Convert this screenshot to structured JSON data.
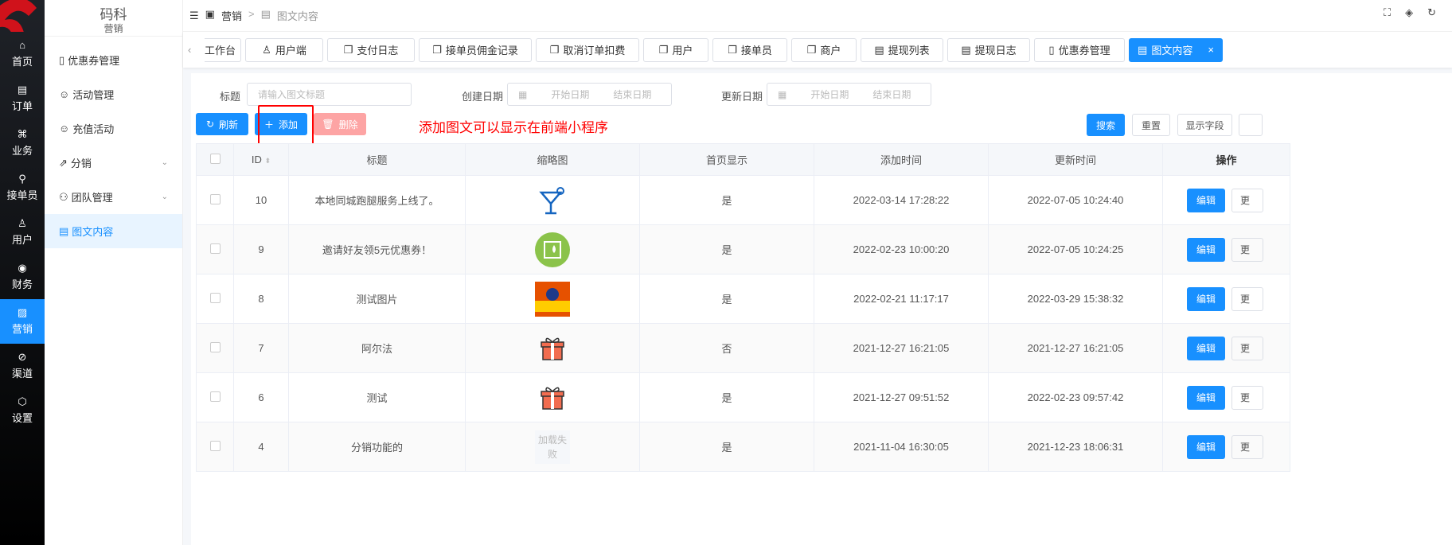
{
  "sidebar": {
    "items": [
      {
        "icon": "home-icon",
        "label": "首页"
      },
      {
        "icon": "order-icon",
        "label": "订单"
      },
      {
        "icon": "business-icon",
        "label": "业务"
      },
      {
        "icon": "bike-icon",
        "label": "接单员"
      },
      {
        "icon": "user-icon",
        "label": "用户"
      },
      {
        "icon": "finance-icon",
        "label": "财务"
      },
      {
        "icon": "marketing-icon",
        "label": "营销",
        "active": true
      },
      {
        "icon": "channel-icon",
        "label": "渠道"
      },
      {
        "icon": "settings-icon",
        "label": "设置"
      }
    ]
  },
  "submenu": {
    "brand": "码科",
    "section": "营销",
    "items": [
      {
        "label": "优惠券管理",
        "icon": "ticket-icon"
      },
      {
        "label": "活动管理",
        "icon": "smile-icon"
      },
      {
        "label": "充值活动",
        "icon": "smile-icon"
      },
      {
        "label": "分销",
        "icon": "share-icon",
        "expandable": true
      },
      {
        "label": "团队管理",
        "icon": "team-icon",
        "expandable": true
      },
      {
        "label": "图文内容",
        "icon": "document-icon",
        "active": true
      }
    ]
  },
  "header": {
    "breadcrumb": [
      "营销",
      "图文内容"
    ]
  },
  "tabs": [
    {
      "label": "工作台"
    },
    {
      "label": "用户端"
    },
    {
      "label": "支付日志"
    },
    {
      "label": "接单员佣金记录"
    },
    {
      "label": "取消订单扣费"
    },
    {
      "label": "用户"
    },
    {
      "label": "接单员"
    },
    {
      "label": "商户"
    },
    {
      "label": "提现列表"
    },
    {
      "label": "提现日志"
    },
    {
      "label": "优惠券管理"
    },
    {
      "label": "图文内容",
      "active": true
    }
  ],
  "filters": {
    "title_label": "标题",
    "title_placeholder": "请输入图文标题",
    "created_label": "创建日期",
    "updated_label": "更新日期",
    "start_placeholder": "开始日期",
    "end_placeholder": "结束日期"
  },
  "toolbar": {
    "refresh": "刷新",
    "add": "添加",
    "delete": "删除",
    "search": "搜索",
    "reset": "重置",
    "columns": "显示字段"
  },
  "annotation": "添加图文可以显示在前端小程序",
  "colors": {
    "primary": "#1890ff",
    "annotation": "#ff0000",
    "danger_disabled": "#fda4a4"
  },
  "table": {
    "headers": [
      "ID",
      "标题",
      "缩略图",
      "首页显示",
      "添加时间",
      "更新时间",
      "操作"
    ],
    "rows": [
      {
        "id": "10",
        "title": "本地同城跑腿服务上线了。",
        "thumb": "cocktail",
        "home": "是",
        "created": "2022-03-14 17:28:22",
        "updated": "2022-07-05 10:24:40"
      },
      {
        "id": "9",
        "title": "邀请好友领5元优惠券！",
        "thumb": "green-circle",
        "home": "是",
        "created": "2022-02-23 10:00:20",
        "updated": "2022-07-05 10:24:25"
      },
      {
        "id": "8",
        "title": "测试图片",
        "thumb": "game-banner",
        "home": "是",
        "created": "2022-02-21 11:17:17",
        "updated": "2022-03-29 15:38:32"
      },
      {
        "id": "7",
        "title": "阿尔法",
        "thumb": "gift",
        "home": "否",
        "created": "2021-12-27 16:21:05",
        "updated": "2021-12-27 16:21:05"
      },
      {
        "id": "6",
        "title": "测试",
        "thumb": "gift",
        "home": "是",
        "created": "2021-12-27 09:51:52",
        "updated": "2022-02-23 09:57:42"
      },
      {
        "id": "4",
        "title": "分销功能的",
        "thumb": "failed",
        "thumb_text": "加载失败",
        "home": "是",
        "created": "2021-11-04 16:30:05",
        "updated": "2021-12-23 18:06:31"
      }
    ],
    "edit": "编辑",
    "more": "更"
  }
}
